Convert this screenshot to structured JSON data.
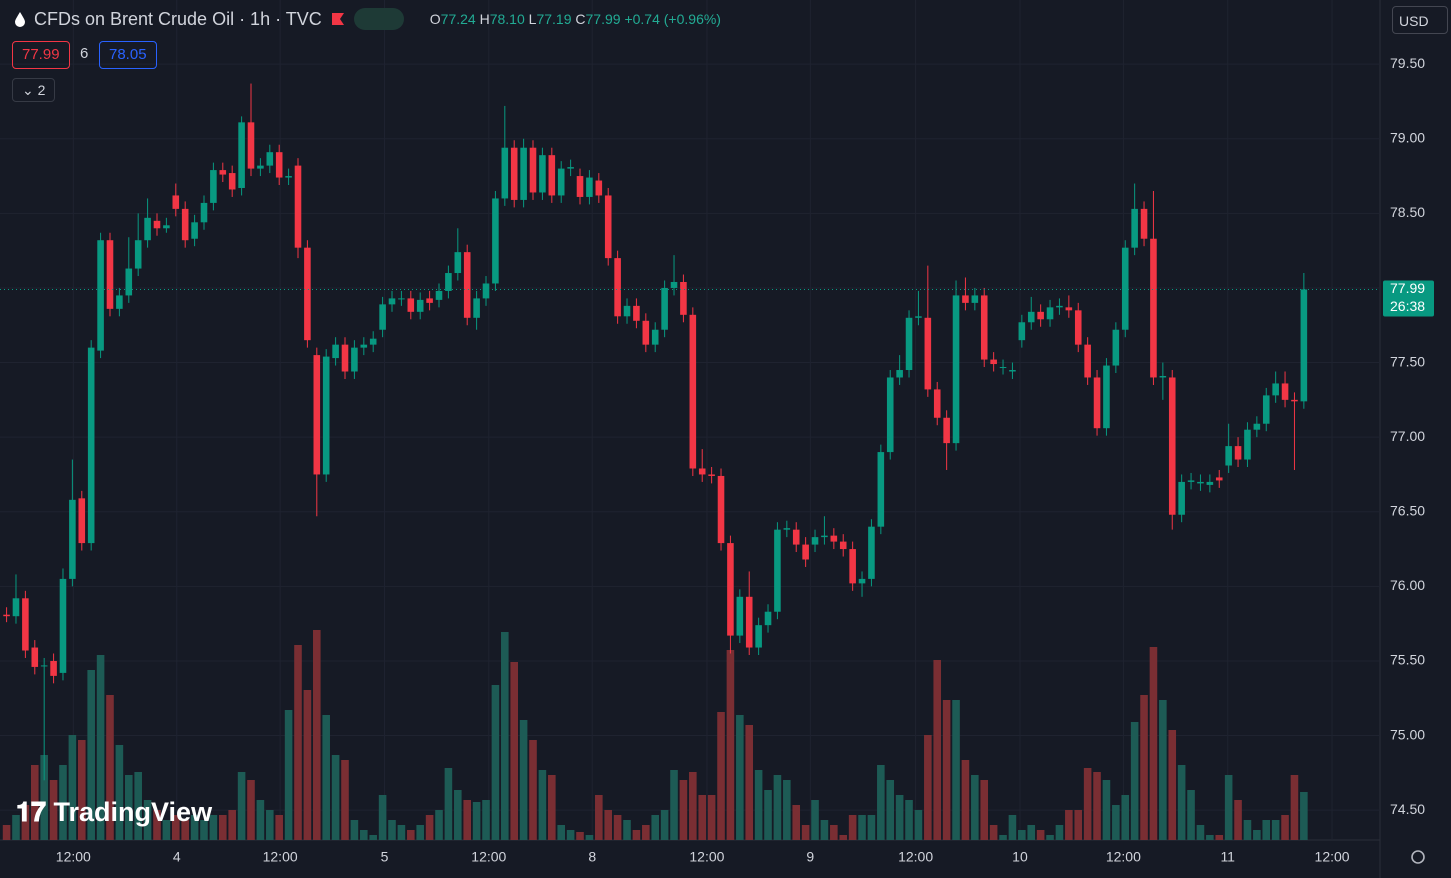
{
  "header": {
    "symbol": "CFDs on Brent Crude Oil · 1h · TVC",
    "open_label": "O",
    "open": "77.24",
    "high_label": "H",
    "high": "78.10",
    "low_label": "L",
    "low": "77.19",
    "close_label": "C",
    "close": "77.99",
    "change": "+0.74 (+0.96%)",
    "sell": "77.99",
    "spread": "6",
    "buy": "78.05",
    "indicators": "2",
    "currency": "USD",
    "logo": "TradingView"
  },
  "chart_data": {
    "type": "candlestick",
    "up_color": "#089981",
    "down_color": "#f23645",
    "volume_up_color": "#1d5b55",
    "volume_down_color": "#7a2e33",
    "open": [
      75.81,
      75.8,
      75.92,
      75.59,
      75.47,
      75.5,
      75.42,
      76.05,
      76.59,
      76.29,
      77.58,
      78.32,
      77.86,
      77.95,
      78.13,
      78.32,
      78.45,
      78.4,
      78.62,
      78.53,
      78.33,
      78.44,
      78.57,
      78.79,
      78.77,
      78.67,
      79.11,
      78.8,
      78.82,
      78.91,
      78.74,
      78.82,
      78.27,
      77.55,
      76.75,
      77.53,
      77.62,
      77.44,
      77.6,
      77.62,
      77.72,
      77.89,
      77.93,
      77.93,
      77.84,
      77.93,
      77.92,
      77.98,
      78.1,
      78.24,
      77.8,
      77.93,
      78.03,
      78.6,
      78.94,
      78.59,
      78.94,
      78.64,
      78.89,
      78.62,
      78.8,
      78.75,
      78.61,
      78.72,
      78.62,
      78.2,
      77.81,
      77.88,
      77.78,
      77.62,
      77.72,
      78.0,
      78.04,
      77.82,
      76.79,
      76.75,
      76.74,
      76.29,
      75.67,
      75.93,
      75.59,
      75.74,
      75.83,
      76.38,
      76.38,
      76.28,
      76.28,
      76.33,
      76.34,
      76.3,
      76.25,
      76.02,
      76.05,
      76.4,
      76.9,
      77.4,
      77.45,
      77.8,
      77.8,
      77.32,
      77.13,
      76.96,
      77.95,
      77.9,
      77.95,
      77.52,
      77.47,
      77.44,
      77.65,
      77.77,
      77.84,
      77.79,
      77.87,
      77.87,
      77.85,
      77.62,
      77.4,
      77.06,
      77.48,
      77.72,
      78.27,
      78.53,
      78.33,
      77.4,
      77.4,
      76.48,
      76.7,
      76.69,
      76.68,
      76.73,
      76.81,
      76.94,
      76.85,
      77.05,
      77.09,
      77.28,
      77.36,
      77.25,
      77.24
    ],
    "high": [
      75.86,
      76.08,
      75.97,
      75.64,
      75.52,
      75.55,
      76.12,
      76.85,
      76.64,
      77.65,
      78.37,
      78.37,
      78.0,
      78.34,
      78.5,
      78.6,
      78.5,
      78.47,
      78.7,
      78.58,
      78.49,
      78.62,
      78.84,
      78.84,
      78.82,
      79.15,
      79.37,
      78.87,
      78.96,
      78.96,
      78.8,
      78.87,
      78.32,
      77.6,
      77.59,
      77.67,
      77.67,
      77.65,
      77.67,
      77.71,
      77.94,
      77.98,
      77.98,
      77.98,
      77.97,
      77.98,
      78.03,
      78.15,
      78.4,
      78.29,
      77.98,
      78.08,
      78.65,
      79.22,
      78.99,
      79.0,
      78.99,
      78.94,
      78.94,
      78.85,
      78.86,
      78.8,
      78.79,
      78.77,
      78.67,
      78.25,
      77.93,
      77.93,
      77.83,
      77.77,
      78.05,
      78.22,
      78.09,
      77.87,
      76.92,
      76.8,
      76.79,
      76.34,
      75.98,
      76.1,
      75.79,
      75.88,
      76.43,
      76.44,
      76.43,
      76.33,
      76.38,
      76.47,
      76.39,
      76.35,
      76.3,
      76.1,
      76.45,
      76.95,
      77.45,
      77.55,
      77.85,
      77.98,
      78.15,
      77.37,
      77.18,
      78.05,
      78.07,
      78.0,
      78.0,
      77.57,
      77.52,
      77.5,
      77.82,
      77.94,
      77.89,
      77.92,
      77.93,
      77.95,
      77.9,
      77.67,
      77.45,
      77.53,
      77.77,
      78.32,
      78.7,
      78.58,
      78.65,
      77.5,
      77.45,
      76.75,
      76.76,
      76.75,
      76.75,
      76.78,
      77.09,
      77.0,
      77.1,
      77.14,
      77.33,
      77.44,
      77.44,
      77.3,
      78.1
    ],
    "low": [
      75.76,
      75.75,
      75.52,
      75.41,
      74.7,
      75.35,
      75.37,
      76.0,
      76.24,
      76.24,
      77.53,
      77.81,
      77.81,
      77.9,
      78.08,
      78.27,
      78.35,
      78.37,
      78.48,
      78.27,
      78.28,
      78.39,
      78.52,
      78.71,
      78.61,
      78.62,
      78.75,
      78.75,
      78.77,
      78.69,
      78.69,
      78.2,
      77.6,
      76.47,
      76.7,
      77.48,
      77.39,
      77.39,
      77.55,
      77.57,
      77.67,
      77.84,
      77.88,
      77.79,
      77.79,
      77.85,
      77.87,
      77.93,
      78.05,
      77.75,
      77.72,
      77.88,
      77.98,
      78.55,
      78.54,
      78.54,
      78.59,
      78.59,
      78.57,
      78.57,
      78.75,
      78.56,
      78.56,
      78.57,
      78.15,
      77.76,
      77.76,
      77.73,
      77.57,
      77.57,
      77.67,
      77.95,
      77.77,
      76.74,
      76.7,
      76.69,
      76.24,
      75.55,
      75.62,
      75.54,
      75.54,
      75.69,
      75.78,
      76.33,
      76.23,
      76.13,
      76.23,
      76.28,
      76.25,
      76.2,
      75.97,
      75.93,
      76.0,
      76.35,
      76.85,
      77.35,
      77.4,
      77.75,
      77.27,
      77.08,
      76.78,
      76.91,
      77.85,
      77.85,
      77.47,
      77.44,
      77.42,
      77.39,
      77.6,
      77.72,
      77.74,
      77.74,
      77.82,
      77.8,
      77.57,
      77.35,
      77.01,
      77.01,
      77.43,
      77.67,
      78.22,
      78.28,
      77.35,
      77.25,
      76.38,
      76.43,
      76.65,
      76.64,
      76.63,
      76.66,
      76.76,
      76.8,
      76.8,
      77.0,
      77.04,
      77.23,
      77.2,
      76.78,
      77.19
    ],
    "close": [
      75.8,
      75.92,
      75.57,
      75.46,
      75.47,
      75.4,
      76.05,
      76.58,
      76.29,
      77.6,
      78.32,
      77.86,
      77.95,
      78.13,
      78.32,
      78.47,
      78.4,
      78.42,
      78.53,
      78.32,
      78.44,
      78.57,
      78.79,
      78.76,
      78.66,
      79.11,
      78.8,
      78.82,
      78.91,
      78.74,
      78.75,
      78.27,
      77.65,
      76.75,
      77.54,
      77.62,
      77.44,
      77.6,
      77.62,
      77.66,
      77.89,
      77.93,
      77.93,
      77.84,
      77.92,
      77.9,
      77.98,
      78.1,
      78.24,
      77.8,
      77.93,
      78.03,
      78.6,
      78.94,
      78.59,
      78.94,
      78.64,
      78.89,
      78.62,
      78.8,
      78.81,
      78.61,
      78.74,
      78.62,
      78.2,
      77.81,
      77.88,
      77.78,
      77.62,
      77.72,
      78.0,
      78.04,
      77.82,
      76.79,
      76.75,
      76.74,
      76.29,
      75.67,
      75.93,
      75.59,
      75.74,
      75.83,
      76.38,
      76.39,
      76.28,
      76.18,
      76.33,
      76.34,
      76.3,
      76.25,
      76.02,
      76.05,
      76.4,
      76.9,
      77.4,
      77.45,
      77.8,
      77.81,
      77.32,
      77.13,
      76.96,
      77.95,
      77.9,
      77.95,
      77.52,
      77.49,
      77.47,
      77.45,
      77.77,
      77.84,
      77.79,
      77.87,
      77.88,
      77.85,
      77.62,
      77.4,
      77.06,
      77.48,
      77.72,
      78.27,
      78.53,
      78.33,
      77.4,
      77.41,
      76.48,
      76.7,
      76.71,
      76.7,
      76.7,
      76.71,
      76.94,
      76.85,
      77.05,
      77.09,
      77.28,
      77.36,
      77.25,
      77.24,
      77.99
    ],
    "volume": [
      15,
      25,
      35,
      75,
      85,
      60,
      75,
      105,
      100,
      170,
      185,
      145,
      95,
      65,
      68,
      40,
      30,
      20,
      25,
      20,
      25,
      20,
      25,
      25,
      30,
      68,
      60,
      40,
      30,
      25,
      130,
      195,
      150,
      210,
      125,
      85,
      80,
      20,
      10,
      5,
      45,
      20,
      15,
      10,
      15,
      25,
      30,
      72,
      50,
      40,
      38,
      40,
      155,
      208,
      178,
      120,
      100,
      70,
      65,
      15,
      10,
      8,
      5,
      45,
      30,
      25,
      20,
      10,
      15,
      25,
      30,
      70,
      60,
      68,
      45,
      45,
      128,
      190,
      125,
      115,
      70,
      50,
      65,
      60,
      35,
      15,
      40,
      20,
      15,
      5,
      25,
      25,
      25,
      75,
      60,
      45,
      40,
      30,
      105,
      180,
      140,
      140,
      80,
      65,
      60,
      15,
      5,
      25,
      10,
      15,
      10,
      5,
      15,
      30,
      30,
      72,
      68,
      60,
      35,
      45,
      118,
      145,
      193,
      140,
      110,
      75,
      50,
      15,
      5,
      5,
      65,
      40,
      20,
      10,
      20,
      20,
      25,
      65,
      48
    ],
    "xlim": [
      -0.7,
      146.1
    ],
    "xticks": [
      {
        "value": 7.1,
        "label": "12:00"
      },
      {
        "value": 18.1,
        "label": "4"
      },
      {
        "value": 29.1,
        "label": "12:00"
      },
      {
        "value": 40.2,
        "label": "5"
      },
      {
        "value": 51.3,
        "label": "12:00"
      },
      {
        "value": 62.3,
        "label": "8"
      },
      {
        "value": 74.5,
        "label": "12:00"
      },
      {
        "value": 85.5,
        "label": "9"
      },
      {
        "value": 96.7,
        "label": "12:00"
      },
      {
        "value": 107.8,
        "label": "10"
      },
      {
        "value": 118.8,
        "label": "12:00"
      },
      {
        "value": 129.9,
        "label": "11"
      },
      {
        "value": 141.0,
        "label": "12:00"
      }
    ],
    "ylim": [
      74.3,
      79.93
    ],
    "yticks": [
      {
        "value": 74.5,
        "label": "74.50"
      },
      {
        "value": 75,
        "label": "75.00"
      },
      {
        "value": 75.5,
        "label": "75.50"
      },
      {
        "value": 76,
        "label": "76.00"
      },
      {
        "value": 76.5,
        "label": "76.50"
      },
      {
        "value": 77,
        "label": "77.00"
      },
      {
        "value": 77.5,
        "label": "77.50"
      },
      {
        "value": 78,
        "label": "78.00"
      },
      {
        "value": 78.5,
        "label": "78.50"
      },
      {
        "value": 79,
        "label": "79.00"
      },
      {
        "value": 79.5,
        "label": "79.50"
      }
    ],
    "grid": true,
    "last_price": {
      "value": 77.99,
      "label": "77.99",
      "countdown": "26:38"
    }
  }
}
